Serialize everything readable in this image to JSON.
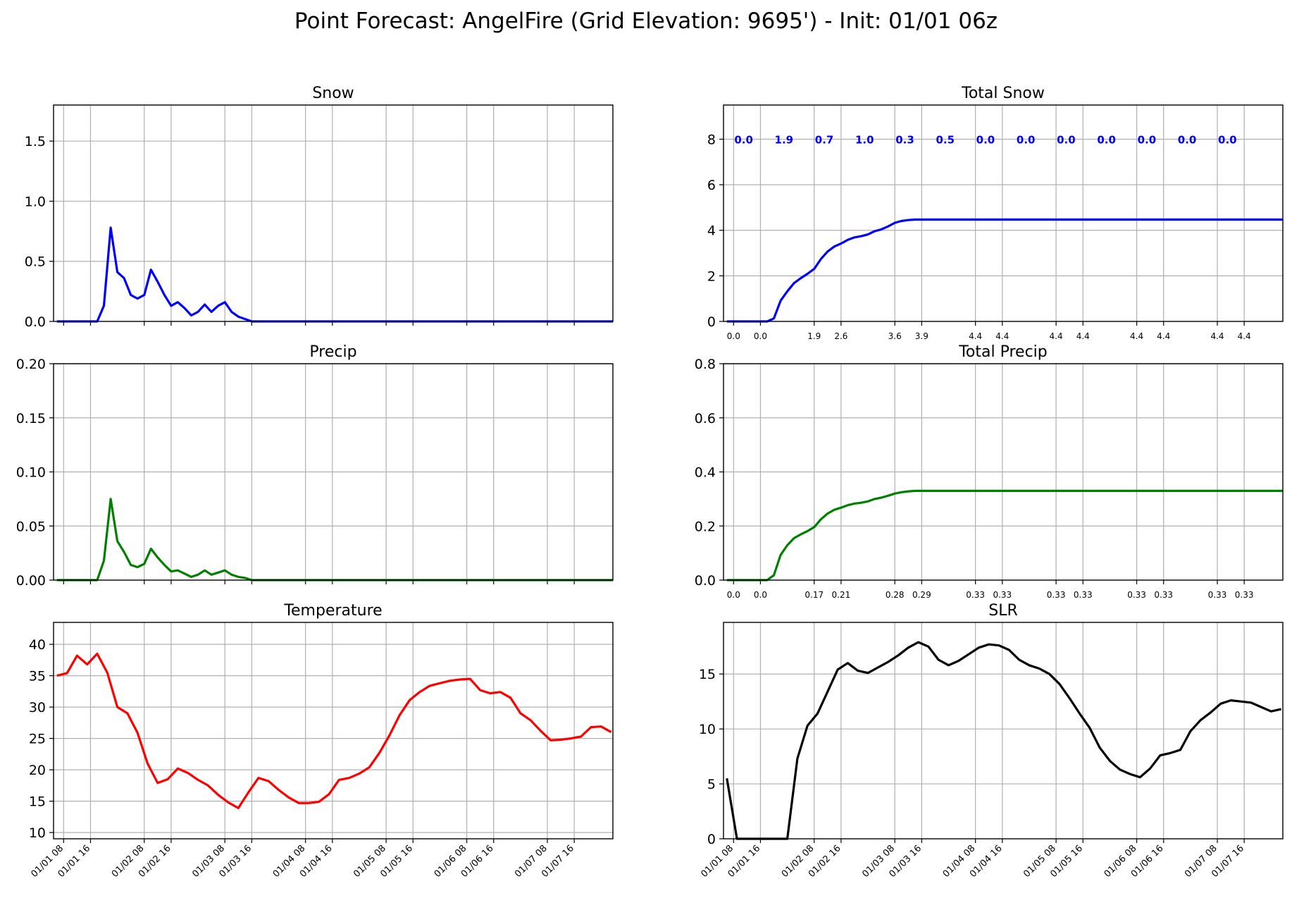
{
  "suptitle": "Point Forecast: AngelFire (Grid Elevation: 9695') - Init: 01/01 06z",
  "x_tick_labels": [
    "01/01 08",
    "01/01 16",
    "01/02 08",
    "01/02 16",
    "01/03 08",
    "01/03 16",
    "01/04 08",
    "01/04 16",
    "01/05 08",
    "01/05 16",
    "01/06 08",
    "01/06 16",
    "01/07 08",
    "01/07 16"
  ],
  "chart_data": [
    {
      "id": "snow",
      "type": "line",
      "title": "Snow",
      "ylim": [
        0,
        1.8
      ],
      "yticks": [
        0.0,
        0.5,
        1.0,
        1.5
      ],
      "ytick_decimals": 1,
      "grid": true,
      "color": "#0000ff",
      "show_x_labels": false,
      "series": [
        {
          "values": [
            0,
            0,
            0,
            0,
            0,
            0,
            0,
            0.13,
            0.78,
            0.41,
            0.36,
            0.22,
            0.19,
            0.22,
            0.43,
            0.33,
            0.22,
            0.13,
            0.16,
            0.11,
            0.05,
            0.08,
            0.14,
            0.08,
            0.13,
            0.16,
            0.08,
            0.04,
            0.02,
            0,
            0,
            0,
            0,
            0,
            0,
            0,
            0,
            0,
            0,
            0,
            0,
            0,
            0,
            0,
            0,
            0,
            0,
            0,
            0,
            0,
            0,
            0,
            0,
            0,
            0,
            0,
            0,
            0,
            0,
            0,
            0,
            0,
            0,
            0,
            0,
            0,
            0,
            0,
            0,
            0,
            0,
            0,
            0,
            0,
            0,
            0,
            0,
            0,
            0,
            0,
            0,
            0,
            0,
            0
          ]
        }
      ]
    },
    {
      "id": "total_snow",
      "type": "line",
      "title": "Total Snow",
      "ylim": [
        0,
        9.5
      ],
      "yticks": [
        0,
        2,
        4,
        6,
        8
      ],
      "ytick_decimals": 0,
      "grid": true,
      "color": "#0000ff",
      "show_x_labels": false,
      "top_labels": [
        "0.0",
        "1.9",
        "0.7",
        "1.0",
        "0.3",
        "0.5",
        "0.0",
        "0.0",
        "0.0",
        "0.0",
        "0.0",
        "0.0",
        "0.0"
      ],
      "bottom_labels": [
        "0.0",
        "0.0",
        "1.9",
        "2.6",
        "3.6",
        "3.9",
        "4.4",
        "4.4",
        "4.4",
        "4.4",
        "4.4",
        "4.4",
        "4.4",
        "4.4"
      ],
      "series": [
        {
          "values": [
            0,
            0,
            0,
            0,
            0,
            0,
            0,
            0.13,
            0.91,
            1.32,
            1.68,
            1.9,
            2.09,
            2.31,
            2.74,
            3.07,
            3.29,
            3.42,
            3.58,
            3.69,
            3.74,
            3.82,
            3.96,
            4.04,
            4.17,
            4.33,
            4.41,
            4.45,
            4.47,
            4.47,
            4.47,
            4.47,
            4.47,
            4.47,
            4.47,
            4.47,
            4.47,
            4.47,
            4.47,
            4.47,
            4.47,
            4.47,
            4.47,
            4.47,
            4.47,
            4.47,
            4.47,
            4.47,
            4.47,
            4.47,
            4.47,
            4.47,
            4.47,
            4.47,
            4.47,
            4.47,
            4.47,
            4.47,
            4.47,
            4.47,
            4.47,
            4.47,
            4.47,
            4.47,
            4.47,
            4.47,
            4.47,
            4.47,
            4.47,
            4.47,
            4.47,
            4.47,
            4.47,
            4.47,
            4.47,
            4.47,
            4.47,
            4.47,
            4.47,
            4.47,
            4.47,
            4.47,
            4.47,
            4.47
          ]
        }
      ]
    },
    {
      "id": "precip",
      "type": "line",
      "title": "Precip",
      "ylim": [
        0,
        0.2
      ],
      "yticks": [
        0.0,
        0.05,
        0.1,
        0.15,
        0.2
      ],
      "ytick_decimals": 2,
      "grid": true,
      "color": "#008000",
      "show_x_labels": false,
      "series": [
        {
          "values": [
            0,
            0,
            0,
            0,
            0,
            0,
            0,
            0.018,
            0.075,
            0.036,
            0.026,
            0.014,
            0.012,
            0.015,
            0.029,
            0.021,
            0.014,
            0.008,
            0.009,
            0.006,
            0.003,
            0.005,
            0.009,
            0.005,
            0.007,
            0.009,
            0.005,
            0.003,
            0.002,
            0,
            0,
            0,
            0,
            0,
            0,
            0,
            0,
            0,
            0,
            0,
            0,
            0,
            0,
            0,
            0,
            0,
            0,
            0,
            0,
            0,
            0,
            0,
            0,
            0,
            0,
            0,
            0,
            0,
            0,
            0,
            0,
            0,
            0,
            0,
            0,
            0,
            0,
            0,
            0,
            0,
            0,
            0,
            0,
            0,
            0,
            0,
            0,
            0,
            0,
            0,
            0,
            0,
            0,
            0
          ]
        }
      ]
    },
    {
      "id": "total_precip",
      "type": "line",
      "title": "Total Precip",
      "ylim": [
        0,
        0.8
      ],
      "yticks": [
        0.0,
        0.2,
        0.4,
        0.6,
        0.8
      ],
      "ytick_decimals": 1,
      "grid": true,
      "color": "#008000",
      "show_x_labels": false,
      "bottom_labels": [
        "0.0",
        "0.0",
        "0.17",
        "0.21",
        "0.28",
        "0.29",
        "0.33",
        "0.33",
        "0.33",
        "0.33",
        "0.33",
        "0.33",
        "0.33",
        "0.33"
      ],
      "series": [
        {
          "values": [
            0,
            0,
            0,
            0,
            0,
            0,
            0,
            0.018,
            0.093,
            0.129,
            0.155,
            0.169,
            0.181,
            0.196,
            0.225,
            0.246,
            0.26,
            0.268,
            0.277,
            0.283,
            0.286,
            0.291,
            0.3,
            0.305,
            0.312,
            0.32,
            0.325,
            0.328,
            0.33,
            0.33,
            0.33,
            0.33,
            0.33,
            0.33,
            0.33,
            0.33,
            0.33,
            0.33,
            0.33,
            0.33,
            0.33,
            0.33,
            0.33,
            0.33,
            0.33,
            0.33,
            0.33,
            0.33,
            0.33,
            0.33,
            0.33,
            0.33,
            0.33,
            0.33,
            0.33,
            0.33,
            0.33,
            0.33,
            0.33,
            0.33,
            0.33,
            0.33,
            0.33,
            0.33,
            0.33,
            0.33,
            0.33,
            0.33,
            0.33,
            0.33,
            0.33,
            0.33,
            0.33,
            0.33,
            0.33,
            0.33,
            0.33,
            0.33,
            0.33,
            0.33,
            0.33,
            0.33,
            0.33,
            0.33
          ]
        }
      ]
    },
    {
      "id": "temperature",
      "type": "line",
      "title": "Temperature",
      "ylim": [
        9,
        43.5
      ],
      "yticks": [
        10,
        15,
        20,
        25,
        30,
        35,
        40
      ],
      "ytick_decimals": 0,
      "grid": true,
      "color": "#ff0000",
      "show_x_labels": true,
      "series": [
        {
          "values": [
            35,
            35.4,
            38.2,
            36.8,
            38.5,
            35.5,
            30,
            29,
            25.9,
            21,
            17.9,
            18.5,
            20.2,
            19.5,
            18.4,
            17.5,
            16,
            14.8,
            13.9,
            16.4,
            18.7,
            18.2,
            16.8,
            15.6,
            14.7,
            14.7,
            14.9,
            16.1,
            18.4,
            18.7,
            19.4,
            20.4,
            22.7,
            25.5,
            28.7,
            31.1,
            32.4,
            33.4,
            33.8,
            34.2,
            34.4,
            34.5,
            32.7,
            32.2,
            32.4,
            31.5,
            29,
            27.9,
            26.2,
            24.7,
            24.8,
            25,
            25.3,
            26.8,
            26.9,
            26,
            26.5
          ]
        }
      ]
    },
    {
      "id": "slr",
      "type": "line",
      "title": "SLR",
      "ylim": [
        0,
        19.7
      ],
      "yticks": [
        0,
        5,
        10,
        15
      ],
      "ytick_decimals": 0,
      "grid": true,
      "color": "#000000",
      "show_x_labels": true,
      "series": [
        {
          "values": [
            5.5,
            0,
            0,
            0,
            0,
            0,
            0,
            7.3,
            10.3,
            11.4,
            13.4,
            15.4,
            16,
            15.3,
            15.1,
            15.6,
            16.1,
            16.7,
            17.4,
            17.9,
            17.5,
            16.3,
            15.8,
            16.2,
            16.8,
            17.4,
            17.7,
            17.6,
            17.2,
            16.3,
            15.8,
            15.5,
            15,
            14.1,
            12.8,
            11.4,
            10.1,
            8.3,
            7.1,
            6.3,
            5.9,
            5.6,
            6.4,
            7.6,
            7.8,
            8.1,
            9.8,
            10.8,
            11.5,
            12.3,
            12.6,
            12.5,
            12.4,
            12,
            11.6,
            11.8,
            11.9
          ]
        }
      ]
    }
  ]
}
